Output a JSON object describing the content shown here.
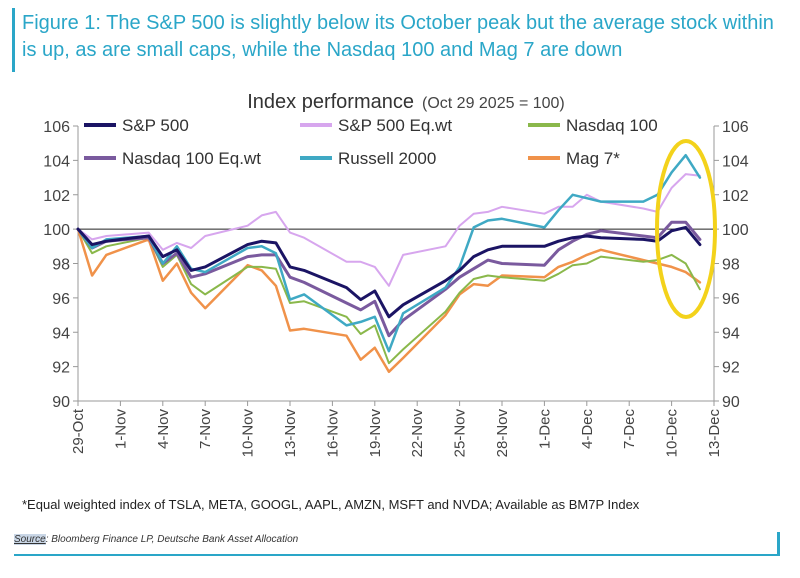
{
  "figure_title": "Figure 1: The S&P 500 is slightly below its October peak but the average stock within is up, as are small caps, while the Nasdaq 100 and Mag 7 are down",
  "footnote": "*Equal weighted index of TSLA, META, GOOGL, AAPL, AMZN, MSFT and NVDA; Available as BM7P Index",
  "source": {
    "label": "Source",
    "text": ": Bloomberg Finance LP, Deutsche Bank Asset Allocation"
  },
  "colors": {
    "accent": "#2aa6c8",
    "highlight": "#f3d21b"
  },
  "chart_data": {
    "type": "line",
    "title": "Index performance",
    "subtitle": "(Oct 29 2025 = 100)",
    "ylim": [
      90,
      106
    ],
    "yticks": [
      90,
      92,
      94,
      96,
      98,
      100,
      102,
      104,
      106
    ],
    "xlim": [
      0,
      45
    ],
    "xtick_positions": [
      0,
      3,
      6,
      9,
      12,
      15,
      18,
      21,
      24,
      27,
      30,
      33,
      36,
      39,
      42,
      45
    ],
    "xtick_labels": [
      "29-Oct",
      "1-Nov",
      "4-Nov",
      "7-Nov",
      "10-Nov",
      "13-Nov",
      "16-Nov",
      "19-Nov",
      "22-Nov",
      "25-Nov",
      "28-Nov",
      "1-Dec",
      "4-Dec",
      "7-Dec",
      "10-Dec",
      "13-Dec"
    ],
    "x": [
      0,
      1,
      2,
      5,
      6,
      7,
      8,
      9,
      12,
      13,
      14,
      15,
      16,
      19,
      20,
      21,
      22,
      23,
      26,
      27,
      28,
      29,
      30,
      33,
      34,
      35,
      36,
      37,
      40,
      41,
      42,
      43,
      44
    ],
    "reference_line": 100,
    "legend_position": "top",
    "series": [
      {
        "name": "S&P 500",
        "color": "#1b1464",
        "width": 3,
        "values": [
          100,
          99.1,
          99.3,
          99.6,
          98.4,
          98.8,
          97.6,
          97.8,
          99.1,
          99.3,
          99.2,
          97.8,
          97.6,
          96.6,
          95.9,
          96.4,
          94.9,
          95.6,
          97.0,
          97.6,
          98.4,
          98.8,
          99.0,
          99.0,
          99.3,
          99.5,
          99.6,
          99.5,
          99.4,
          99.3,
          99.9,
          100.1,
          99.1
        ]
      },
      {
        "name": "S&P 500 Eq.wt",
        "color": "#d7a6ee",
        "width": 2,
        "values": [
          100,
          99.4,
          99.6,
          99.8,
          98.8,
          99.2,
          98.9,
          99.6,
          100.2,
          100.8,
          101.0,
          99.8,
          99.5,
          98.1,
          98.1,
          97.8,
          96.7,
          98.5,
          99.0,
          100.2,
          100.9,
          101.0,
          101.3,
          100.9,
          101.3,
          101.3,
          102.0,
          101.6,
          101.2,
          101.0,
          102.4,
          103.2,
          103.1
        ]
      },
      {
        "name": "Nasdaq 100",
        "color": "#8ab84b",
        "width": 2,
        "values": [
          100,
          98.6,
          99.0,
          99.5,
          97.8,
          98.5,
          96.8,
          96.2,
          97.8,
          97.8,
          97.7,
          95.7,
          95.8,
          94.9,
          93.9,
          94.4,
          92.2,
          93.0,
          95.2,
          96.3,
          97.1,
          97.3,
          97.2,
          97.0,
          97.4,
          97.9,
          98.0,
          98.4,
          98.1,
          98.2,
          98.5,
          98.0,
          96.5
        ]
      },
      {
        "name": "Russell 2000",
        "color": "#3fa9c4",
        "width": 2.5,
        "values": [
          100,
          98.9,
          99.4,
          99.6,
          98.0,
          99.0,
          97.7,
          97.5,
          98.9,
          99.0,
          98.6,
          95.9,
          96.2,
          94.4,
          94.6,
          94.9,
          92.9,
          95.1,
          96.6,
          97.8,
          100.1,
          100.5,
          100.6,
          100.1,
          101.1,
          102.0,
          101.8,
          101.6,
          101.6,
          102.0,
          103.3,
          104.3,
          103.0
        ]
      },
      {
        "name": "Nasdaq 100 Eq.wt",
        "color": "#7a5a9e",
        "width": 3,
        "values": [
          100,
          98.9,
          99.3,
          99.5,
          98.0,
          98.6,
          97.2,
          97.4,
          98.4,
          98.5,
          98.5,
          97.2,
          96.9,
          95.7,
          95.3,
          95.8,
          93.8,
          94.7,
          96.5,
          97.2,
          97.7,
          98.2,
          98.0,
          97.9,
          98.8,
          99.3,
          99.7,
          99.9,
          99.6,
          99.5,
          100.4,
          100.4,
          99.4
        ]
      },
      {
        "name": "Mag 7*",
        "color": "#f0924a",
        "width": 2.5,
        "values": [
          100,
          97.3,
          98.5,
          99.4,
          97.0,
          98.0,
          96.3,
          95.4,
          97.9,
          97.6,
          96.7,
          94.1,
          94.2,
          93.8,
          92.4,
          93.1,
          91.7,
          92.5,
          95.0,
          96.2,
          96.8,
          96.7,
          97.3,
          97.2,
          97.8,
          98.1,
          98.5,
          98.8,
          98.2,
          98.0,
          97.8,
          97.5,
          96.9
        ]
      }
    ],
    "legend_order": [
      "S&P 500",
      "S&P 500 Eq.wt",
      "Nasdaq 100",
      "Nasdaq 100 Eq.wt",
      "Russell 2000",
      "Mag 7*"
    ]
  }
}
